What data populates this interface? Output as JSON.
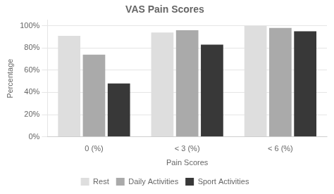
{
  "chart_data": {
    "type": "bar",
    "title": "VAS Pain Scores",
    "xlabel": "Pain Scores",
    "ylabel": "Percentage",
    "categories": [
      "0 (%)",
      "< 3 (%)",
      "< 6 (%)"
    ],
    "series": [
      {
        "name": "Rest",
        "color": "#dedede",
        "values": [
          91,
          94,
          100
        ]
      },
      {
        "name": "Daily Activities",
        "color": "#aaaaaa",
        "values": [
          74,
          96,
          98
        ]
      },
      {
        "name": "Sport Activities",
        "color": "#383838",
        "values": [
          48,
          83,
          95
        ]
      }
    ],
    "ylim": [
      0,
      105
    ],
    "yticks": [
      {
        "value": 0,
        "label": "0%"
      },
      {
        "value": 20,
        "label": "20%"
      },
      {
        "value": 40,
        "label": "40%"
      },
      {
        "value": 60,
        "label": "60%"
      },
      {
        "value": 80,
        "label": "80%"
      },
      {
        "value": 100,
        "label": "100%"
      }
    ],
    "grid": true,
    "legend": "bottom"
  }
}
